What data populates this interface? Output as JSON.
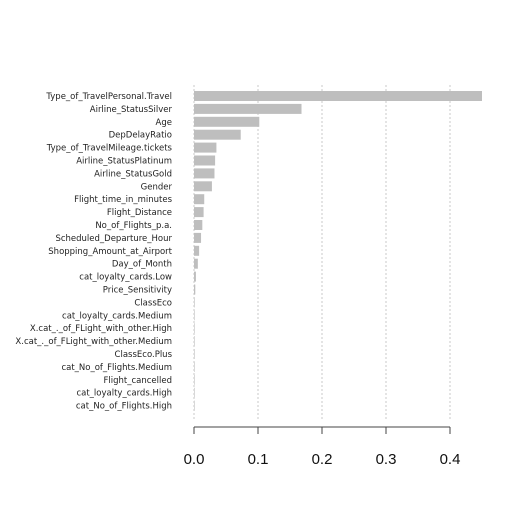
{
  "chart_data": {
    "type": "bar",
    "orientation": "horizontal",
    "title": "",
    "xlabel": "",
    "ylabel": "",
    "categories": [
      "Type_of_TravelPersonal.Travel",
      "Airline_StatusSilver",
      "Age",
      "DepDelayRatio",
      "Type_of_TravelMileage.tickets",
      "Airline_StatusPlatinum",
      "Airline_StatusGold",
      "Gender",
      "Flight_time_in_minutes",
      "Flight_Distance",
      "No_of_Flights_p.a.",
      "Scheduled_Departure_Hour",
      "Shopping_Amount_at_Airport",
      "Day_of_Month",
      "cat_loyalty_cards.Low",
      "Price_Sensitivity",
      "ClassEco",
      "cat_loyalty_cards.Medium",
      "X.cat_._of_FLight_with_other.High",
      "X.cat_._of_FLight_with_other.Medium",
      "ClassEco.Plus",
      "cat_No_of_Flights.Medium",
      "Flight_cancelled",
      "cat_loyalty_cards.High",
      "cat_No_of_Flights.High"
    ],
    "values": [
      0.45,
      0.168,
      0.102,
      0.073,
      0.035,
      0.033,
      0.032,
      0.028,
      0.016,
      0.015,
      0.013,
      0.011,
      0.008,
      0.006,
      0.003,
      0.002,
      0.001,
      0.0008,
      0.0007,
      0.0006,
      0.0005,
      0.0004,
      0.0003,
      0.0002,
      0.0001
    ],
    "xlim": [
      0,
      0.45
    ],
    "xticks": [
      0.0,
      0.1,
      0.2,
      0.3,
      0.4
    ],
    "xtick_labels": [
      "0.0",
      "0.1",
      "0.2",
      "0.3",
      "0.4"
    ],
    "grid": "vertical dashed",
    "bar_color": "#bebebe"
  }
}
